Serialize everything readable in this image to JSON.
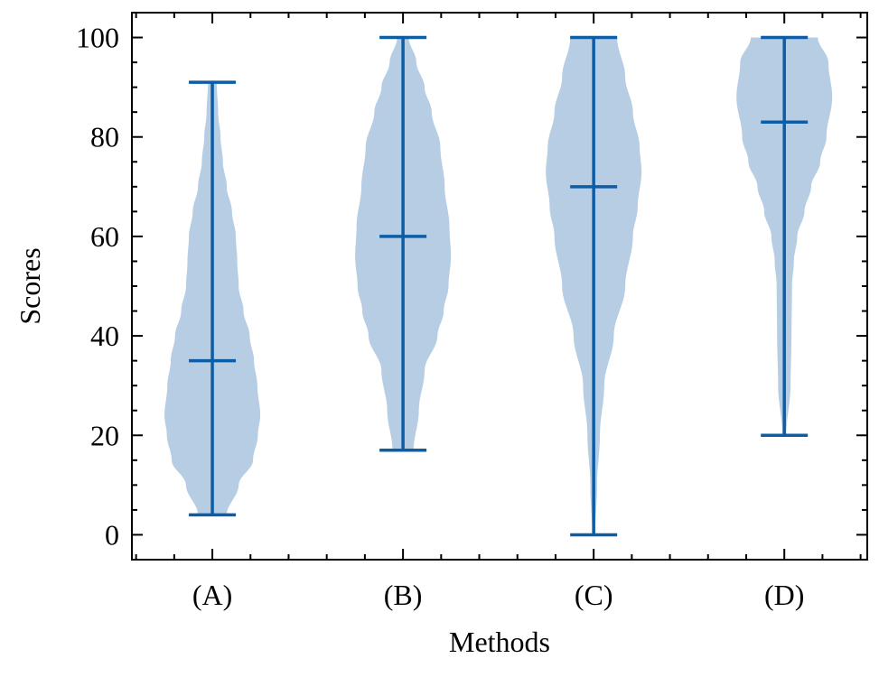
{
  "chart_data": {
    "type": "violin",
    "title": "",
    "xlabel": "Methods",
    "ylabel": "Scores",
    "categories": [
      "(A)",
      "(B)",
      "(C)",
      "(D)"
    ],
    "ylim": [
      -5,
      105
    ],
    "yticks": [
      0,
      20,
      40,
      60,
      80,
      100
    ],
    "grid": false,
    "colors": {
      "line": "#0C5DA5",
      "fill": "#B6CDE3"
    },
    "series": [
      {
        "category": "(A)",
        "min": 4,
        "median": 35,
        "max": 91,
        "density": [
          [
            4,
            0.3
          ],
          [
            10,
            0.55
          ],
          [
            15,
            0.85
          ],
          [
            20,
            0.95
          ],
          [
            24,
            1.0
          ],
          [
            30,
            0.94
          ],
          [
            35,
            0.87
          ],
          [
            40,
            0.78
          ],
          [
            45,
            0.65
          ],
          [
            50,
            0.55
          ],
          [
            55,
            0.52
          ],
          [
            60,
            0.49
          ],
          [
            65,
            0.41
          ],
          [
            70,
            0.3
          ],
          [
            75,
            0.22
          ],
          [
            80,
            0.17
          ],
          [
            85,
            0.12
          ],
          [
            91,
            0.09
          ]
        ]
      },
      {
        "category": "(B)",
        "min": 17,
        "median": 60,
        "max": 100,
        "density": [
          [
            17,
            0.22
          ],
          [
            25,
            0.33
          ],
          [
            33,
            0.45
          ],
          [
            40,
            0.72
          ],
          [
            45,
            0.85
          ],
          [
            50,
            0.95
          ],
          [
            56,
            1.0
          ],
          [
            62,
            0.97
          ],
          [
            70,
            0.87
          ],
          [
            78,
            0.78
          ],
          [
            85,
            0.6
          ],
          [
            90,
            0.45
          ],
          [
            95,
            0.28
          ],
          [
            100,
            0.12
          ]
        ]
      },
      {
        "category": "(C)",
        "min": 0,
        "median": 70,
        "max": 100,
        "density": [
          [
            0,
            0.03
          ],
          [
            10,
            0.07
          ],
          [
            20,
            0.13
          ],
          [
            30,
            0.22
          ],
          [
            40,
            0.42
          ],
          [
            50,
            0.66
          ],
          [
            60,
            0.82
          ],
          [
            66,
            0.92
          ],
          [
            73,
            1.0
          ],
          [
            78,
            0.96
          ],
          [
            85,
            0.82
          ],
          [
            92,
            0.66
          ],
          [
            100,
            0.49
          ]
        ]
      },
      {
        "category": "(D)",
        "min": 20,
        "median": 83,
        "max": 100,
        "density": [
          [
            20,
            0.04
          ],
          [
            30,
            0.13
          ],
          [
            40,
            0.15
          ],
          [
            50,
            0.16
          ],
          [
            55,
            0.2
          ],
          [
            60,
            0.27
          ],
          [
            65,
            0.42
          ],
          [
            70,
            0.56
          ],
          [
            75,
            0.75
          ],
          [
            80,
            0.88
          ],
          [
            88,
            1.0
          ],
          [
            95,
            0.92
          ],
          [
            100,
            0.7
          ]
        ]
      }
    ]
  }
}
